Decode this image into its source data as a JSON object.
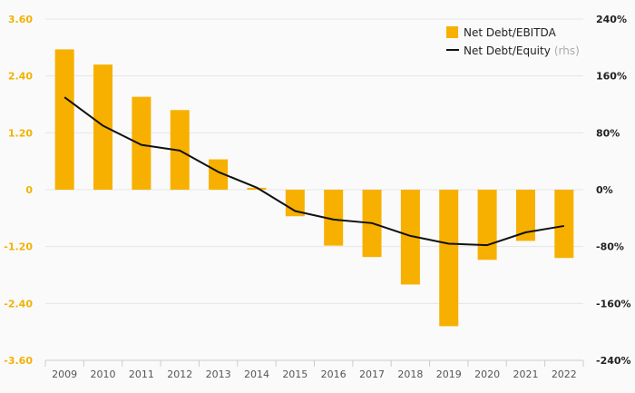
{
  "chart_data": {
    "type": "bar",
    "title": "",
    "categories": [
      "2009",
      "2010",
      "2011",
      "2012",
      "2013",
      "2014",
      "2015",
      "2016",
      "2017",
      "2018",
      "2019",
      "2020",
      "2021",
      "2022"
    ],
    "series": [
      {
        "name": "Net Debt/EBITDA",
        "type": "bar",
        "axis": "left",
        "values": [
          2.96,
          2.64,
          1.96,
          1.68,
          0.64,
          0.04,
          -0.56,
          -1.18,
          -1.42,
          -2.0,
          -2.88,
          -1.48,
          -1.08,
          -1.44
        ]
      },
      {
        "name": "Net Debt/Equity",
        "name_suffix": "(rhs)",
        "type": "line",
        "axis": "right",
        "values": [
          130,
          90,
          63,
          55,
          25,
          3,
          -30,
          -42,
          -47,
          -65,
          -76,
          -78,
          -60,
          -51
        ]
      }
    ],
    "y_left": {
      "min": -3.6,
      "max": 3.6,
      "ticks": [
        "-3.60",
        "-2.40",
        "-1.20",
        "0",
        "1.20",
        "2.40",
        "3.60"
      ]
    },
    "y_right": {
      "min": -240,
      "max": 240,
      "ticks": [
        "-240%",
        "-160%",
        "-80%",
        "0%",
        "80%",
        "160%",
        "240%"
      ]
    },
    "legend_position": "top-right",
    "grid": true,
    "colors": {
      "bar": "#f7b000",
      "line": "#111111",
      "left_ticks": "#f2b200",
      "grid": "#e6e6e6"
    }
  }
}
